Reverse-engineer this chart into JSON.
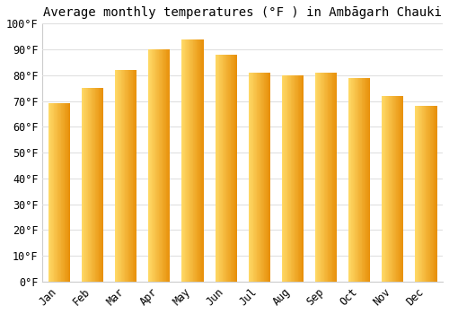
{
  "title": "Average monthly temperatures (°F ) in Ambāgarh Chauki",
  "months": [
    "Jan",
    "Feb",
    "Mar",
    "Apr",
    "May",
    "Jun",
    "Jul",
    "Aug",
    "Sep",
    "Oct",
    "Nov",
    "Dec"
  ],
  "values": [
    69,
    75,
    82,
    90,
    94,
    88,
    81,
    80,
    81,
    79,
    72,
    68
  ],
  "bar_color_left": "#FFD966",
  "bar_color_right": "#E8900A",
  "bar_color_mid": "#FFAA00",
  "ylim": [
    0,
    100
  ],
  "yticks": [
    0,
    10,
    20,
    30,
    40,
    50,
    60,
    70,
    80,
    90,
    100
  ],
  "ytick_labels": [
    "0°F",
    "10°F",
    "20°F",
    "30°F",
    "40°F",
    "50°F",
    "60°F",
    "70°F",
    "80°F",
    "90°F",
    "100°F"
  ],
  "background_color": "#ffffff",
  "grid_color": "#e0e0e0",
  "title_fontsize": 10,
  "tick_fontsize": 8.5,
  "bar_width": 0.65
}
